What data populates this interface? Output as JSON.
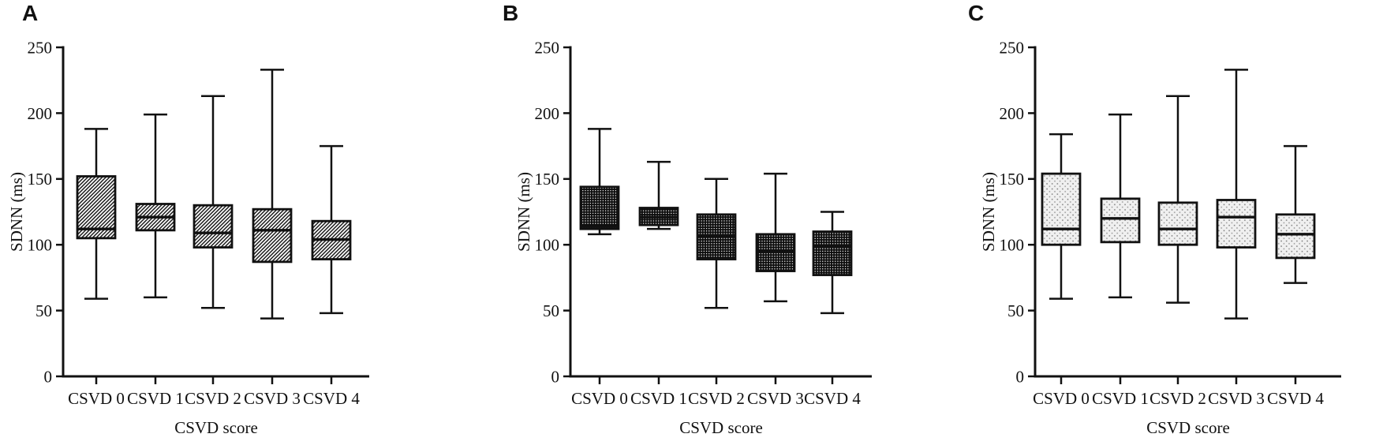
{
  "figure": {
    "background_color": "#ffffff",
    "ink_color": "#111111",
    "description": "Box plots of SDNN by CSVD score, panels A, B and C"
  },
  "chart_data": [
    {
      "type": "boxplot",
      "panel_label": "A",
      "ylabel": "SDNN (ms)",
      "xlabel": "CSVD score",
      "ylim": [
        0,
        250
      ],
      "yticks": [
        0,
        50,
        100,
        150,
        200,
        250
      ],
      "grid": false,
      "fill_pattern": "diagonal-hatch",
      "categories": [
        "CSVD 0",
        "CSVD 1",
        "CSVD 2",
        "CSVD 3",
        "CSVD 4"
      ],
      "boxes": [
        {
          "category": "CSVD 0",
          "whisker_min": 59,
          "q1": 105,
          "median": 112,
          "q3": 152,
          "whisker_max": 188
        },
        {
          "category": "CSVD 1",
          "whisker_min": 60,
          "q1": 111,
          "median": 121,
          "q3": 131,
          "whisker_max": 199
        },
        {
          "category": "CSVD 2",
          "whisker_min": 52,
          "q1": 98,
          "median": 109,
          "q3": 130,
          "whisker_max": 213
        },
        {
          "category": "CSVD 3",
          "whisker_min": 44,
          "q1": 87,
          "median": 111,
          "q3": 127,
          "whisker_max": 233
        },
        {
          "category": "CSVD 4",
          "whisker_min": 48,
          "q1": 89,
          "median": 104,
          "q3": 118,
          "whisker_max": 175
        }
      ]
    },
    {
      "type": "boxplot",
      "panel_label": "B",
      "ylabel": "SDNN (ms)",
      "xlabel": "CSVD score",
      "ylim": [
        0,
        250
      ],
      "yticks": [
        0,
        50,
        100,
        150,
        200,
        250
      ],
      "grid": false,
      "fill_pattern": "dark-checker",
      "categories": [
        "CSVD 0",
        "CSVD 1",
        "CSVD 2",
        "CSVD 3",
        "CSVD 4"
      ],
      "boxes": [
        {
          "category": "CSVD 0",
          "whisker_min": 108,
          "q1": 112,
          "median": 114,
          "q3": 144,
          "whisker_max": 188
        },
        {
          "category": "CSVD 1",
          "whisker_min": 112,
          "q1": 115,
          "median": 121,
          "q3": 128,
          "whisker_max": 163
        },
        {
          "category": "CSVD 2",
          "whisker_min": 52,
          "q1": 89,
          "median": 107,
          "q3": 123,
          "whisker_max": 150
        },
        {
          "category": "CSVD 3",
          "whisker_min": 57,
          "q1": 80,
          "median": 95,
          "q3": 108,
          "whisker_max": 154
        },
        {
          "category": "CSVD 4",
          "whisker_min": 48,
          "q1": 77,
          "median": 99,
          "q3": 110,
          "whisker_max": 125
        }
      ]
    },
    {
      "type": "boxplot",
      "panel_label": "C",
      "ylabel": "SDNN (ms)",
      "xlabel": "CSVD score",
      "ylim": [
        0,
        250
      ],
      "yticks": [
        0,
        50,
        100,
        150,
        200,
        250
      ],
      "grid": false,
      "fill_pattern": "light-dots",
      "categories": [
        "CSVD 0",
        "CSVD 1",
        "CSVD 2",
        "CSVD 3",
        "CSVD 4"
      ],
      "boxes": [
        {
          "category": "CSVD 0",
          "whisker_min": 59,
          "q1": 100,
          "median": 112,
          "q3": 154,
          "whisker_max": 184
        },
        {
          "category": "CSVD 1",
          "whisker_min": 60,
          "q1": 102,
          "median": 120,
          "q3": 135,
          "whisker_max": 199
        },
        {
          "category": "CSVD 2",
          "whisker_min": 56,
          "q1": 100,
          "median": 112,
          "q3": 132,
          "whisker_max": 213
        },
        {
          "category": "CSVD 3",
          "whisker_min": 44,
          "q1": 98,
          "median": 121,
          "q3": 134,
          "whisker_max": 233
        },
        {
          "category": "CSVD 4",
          "whisker_min": 71,
          "q1": 90,
          "median": 108,
          "q3": 123,
          "whisker_max": 175
        }
      ]
    }
  ]
}
